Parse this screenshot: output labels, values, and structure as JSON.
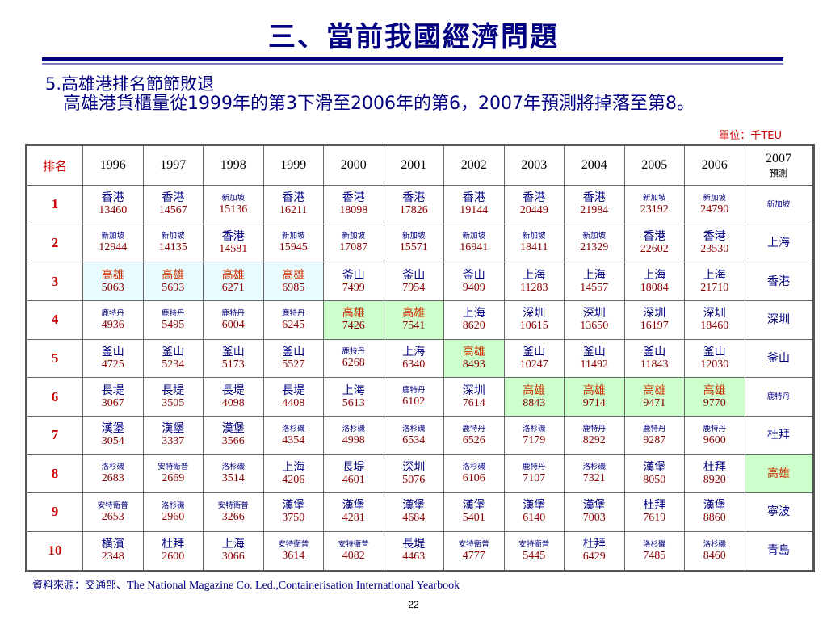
{
  "title": "三、當前我國經濟問題",
  "heading": "5.高雄港排名節節敗退",
  "description": "高雄港貨櫃量從1999年的第3下滑至2006年的第6，2007年預測將掉落至第8。",
  "unit": "單位：千TEU",
  "table": {
    "rank_header": "排名",
    "years": [
      "1996",
      "1997",
      "1998",
      "1999",
      "2000",
      "2001",
      "2002",
      "2003",
      "2004",
      "2005",
      "2006"
    ],
    "projection_year": "2007",
    "projection_label": "預測",
    "rows": [
      {
        "rank": "1",
        "cells": [
          [
            "香港",
            "13460"
          ],
          [
            "香港",
            "14567"
          ],
          [
            "新加坡",
            "15136"
          ],
          [
            "香港",
            "16211"
          ],
          [
            "香港",
            "18098"
          ],
          [
            "香港",
            "17826"
          ],
          [
            "香港",
            "19144"
          ],
          [
            "香港",
            "20449"
          ],
          [
            "香港",
            "21984"
          ],
          [
            "新加坡",
            "23192"
          ],
          [
            "新加坡",
            "24790"
          ]
        ],
        "projection": "新加坡"
      },
      {
        "rank": "2",
        "cells": [
          [
            "新加坡",
            "12944"
          ],
          [
            "新加坡",
            "14135"
          ],
          [
            "香港",
            "14581"
          ],
          [
            "新加坡",
            "15945"
          ],
          [
            "新加坡",
            "17087"
          ],
          [
            "新加坡",
            "15571"
          ],
          [
            "新加坡",
            "16941"
          ],
          [
            "新加坡",
            "18411"
          ],
          [
            "新加坡",
            "21329"
          ],
          [
            "香港",
            "22602"
          ],
          [
            "香港",
            "23530"
          ]
        ],
        "projection": "上海"
      },
      {
        "rank": "3",
        "cells": [
          [
            "高雄",
            "5063"
          ],
          [
            "高雄",
            "5693"
          ],
          [
            "高雄",
            "6271"
          ],
          [
            "高雄",
            "6985"
          ],
          [
            "釜山",
            "7499"
          ],
          [
            "釜山",
            "7954"
          ],
          [
            "釜山",
            "9409"
          ],
          [
            "上海",
            "11283"
          ],
          [
            "上海",
            "14557"
          ],
          [
            "上海",
            "18084"
          ],
          [
            "上海",
            "21710"
          ]
        ],
        "projection": "香港"
      },
      {
        "rank": "4",
        "cells": [
          [
            "鹿特丹",
            "4936"
          ],
          [
            "鹿特丹",
            "5495"
          ],
          [
            "鹿特丹",
            "6004"
          ],
          [
            "鹿特丹",
            "6245"
          ],
          [
            "高雄",
            "7426"
          ],
          [
            "高雄",
            "7541"
          ],
          [
            "上海",
            "8620"
          ],
          [
            "深圳",
            "10615"
          ],
          [
            "深圳",
            "13650"
          ],
          [
            "深圳",
            "16197"
          ],
          [
            "深圳",
            "18460"
          ]
        ],
        "projection": "深圳"
      },
      {
        "rank": "5",
        "cells": [
          [
            "釜山",
            "4725"
          ],
          [
            "釜山",
            "5234"
          ],
          [
            "釜山",
            "5173"
          ],
          [
            "釜山",
            "5527"
          ],
          [
            "鹿特丹",
            "6268"
          ],
          [
            "上海",
            "6340"
          ],
          [
            "高雄",
            "8493"
          ],
          [
            "釜山",
            "10247"
          ],
          [
            "釜山",
            "11492"
          ],
          [
            "釜山",
            "11843"
          ],
          [
            "釜山",
            "12030"
          ]
        ],
        "projection": "釜山"
      },
      {
        "rank": "6",
        "cells": [
          [
            "長堤",
            "3067"
          ],
          [
            "長堤",
            "3505"
          ],
          [
            "長堤",
            "4098"
          ],
          [
            "長堤",
            "4408"
          ],
          [
            "上海",
            "5613"
          ],
          [
            "鹿特丹",
            "6102"
          ],
          [
            "深圳",
            "7614"
          ],
          [
            "高雄",
            "8843"
          ],
          [
            "高雄",
            "9714"
          ],
          [
            "高雄",
            "9471"
          ],
          [
            "高雄",
            "9770"
          ]
        ],
        "projection": "鹿特丹"
      },
      {
        "rank": "7",
        "cells": [
          [
            "漢堡",
            "3054"
          ],
          [
            "漢堡",
            "3337"
          ],
          [
            "漢堡",
            "3566"
          ],
          [
            "洛杉磯",
            "4354"
          ],
          [
            "洛杉磯",
            "4998"
          ],
          [
            "洛杉磯",
            "6534"
          ],
          [
            "鹿特丹",
            "6526"
          ],
          [
            "洛杉磯",
            "7179"
          ],
          [
            "鹿特丹",
            "8292"
          ],
          [
            "鹿特丹",
            "9287"
          ],
          [
            "鹿特丹",
            "9600"
          ]
        ],
        "projection": "杜拜"
      },
      {
        "rank": "8",
        "cells": [
          [
            "洛杉磯",
            "2683"
          ],
          [
            "安特衛普",
            "2669"
          ],
          [
            "洛杉磯",
            "3514"
          ],
          [
            "上海",
            "4206"
          ],
          [
            "長堤",
            "4601"
          ],
          [
            "深圳",
            "5076"
          ],
          [
            "洛杉磯",
            "6106"
          ],
          [
            "鹿特丹",
            "7107"
          ],
          [
            "洛杉磯",
            "7321"
          ],
          [
            "漢堡",
            "8050"
          ],
          [
            "杜拜",
            "8920"
          ]
        ],
        "projection": "高雄"
      },
      {
        "rank": "9",
        "cells": [
          [
            "安特衛普",
            "2653"
          ],
          [
            "洛杉磯",
            "2960"
          ],
          [
            "安特衛普",
            "3266"
          ],
          [
            "漢堡",
            "3750"
          ],
          [
            "漢堡",
            "4281"
          ],
          [
            "漢堡",
            "4684"
          ],
          [
            "漢堡",
            "5401"
          ],
          [
            "漢堡",
            "6140"
          ],
          [
            "漢堡",
            "7003"
          ],
          [
            "杜拜",
            "7619"
          ],
          [
            "漢堡",
            "8860"
          ]
        ],
        "projection": "寧波"
      },
      {
        "rank": "10",
        "cells": [
          [
            "橫濱",
            "2348"
          ],
          [
            "杜拜",
            "2600"
          ],
          [
            "上海",
            "3066"
          ],
          [
            "安特衛普",
            "3614"
          ],
          [
            "安特衛普",
            "4082"
          ],
          [
            "長堤",
            "4463"
          ],
          [
            "安特衛普",
            "4777"
          ],
          [
            "安特衛普",
            "5445"
          ],
          [
            "杜拜",
            "6429"
          ],
          [
            "洛杉磯",
            "7485"
          ],
          [
            "洛杉磯",
            "8460"
          ]
        ],
        "projection": "青島"
      }
    ]
  },
  "highlight": {
    "port": "高雄",
    "early_years_color": "#e8fbff",
    "later_years_color": "#ccffcc"
  },
  "source": {
    "label": "資料來源：交通部、",
    "text": "The National Magazine Co. Led.,Containerisation International Yearbook"
  },
  "page_number": "22"
}
